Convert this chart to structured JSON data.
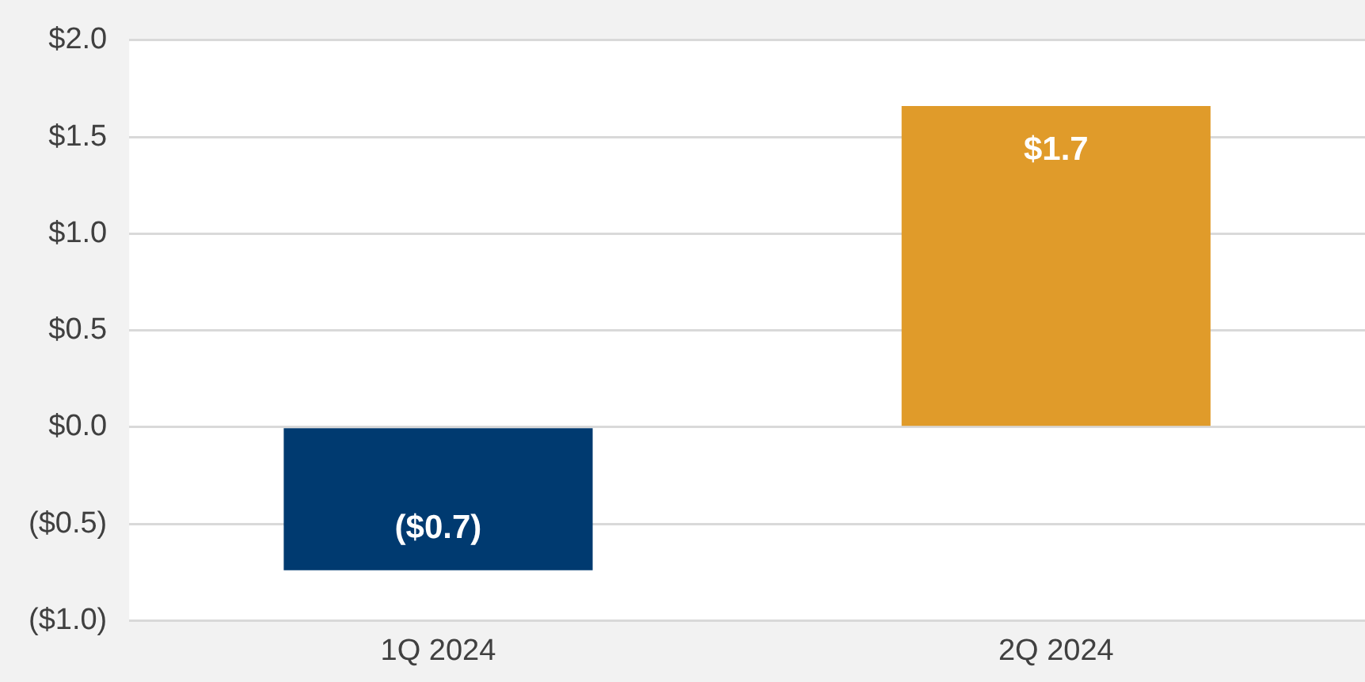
{
  "chart_data": {
    "type": "bar",
    "categories": [
      "1Q 2024",
      "2Q 2024"
    ],
    "values": [
      -0.74,
      1.66
    ],
    "colors": [
      "#003a70",
      "#e09b2a"
    ],
    "value_labels": [
      "($0.7)",
      "$1.7"
    ],
    "ylim": [
      -1.0,
      2.0
    ],
    "yticks": [
      {
        "value": -1.0,
        "label": "($1.0)"
      },
      {
        "value": -0.5,
        "label": "($0.5)"
      },
      {
        "value": 0,
        "label": "$0.0"
      },
      {
        "value": 0.5,
        "label": "$0.5"
      },
      {
        "value": 1.0,
        "label": "$1.0"
      },
      {
        "value": 1.5,
        "label": "$1.5"
      },
      {
        "value": 2.0,
        "label": "$2.0"
      }
    ],
    "grid": "y"
  }
}
